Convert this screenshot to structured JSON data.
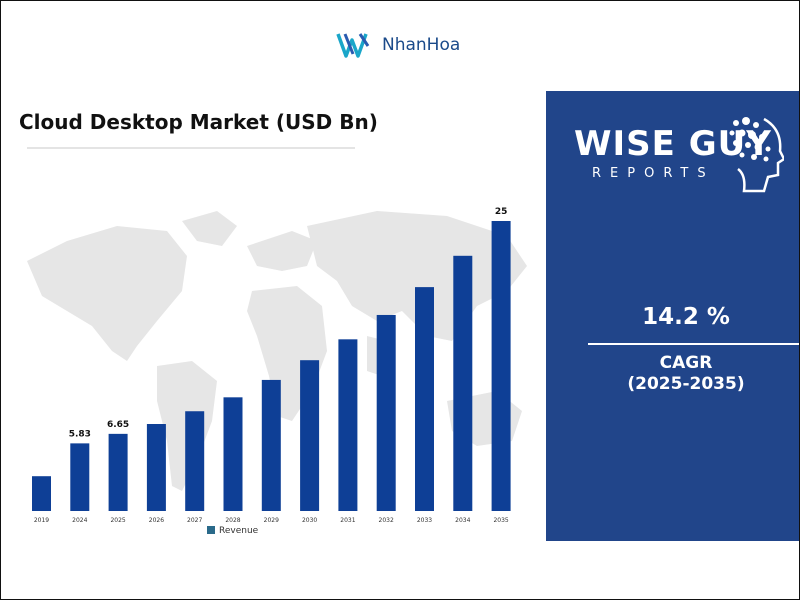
{
  "header": {
    "logo_text": "NhanHoa",
    "logo_icon": "nhanhoa-logo-icon"
  },
  "chart_data": {
    "type": "bar",
    "title": "Cloud Desktop Market (USD Bn)",
    "xlabel": "",
    "ylabel": "",
    "categories": [
      "2019",
      "2024",
      "2025",
      "2026",
      "2027",
      "2028",
      "2029",
      "2030",
      "2031",
      "2032",
      "2033",
      "2034",
      "2035"
    ],
    "series": [
      {
        "name": "Revenue",
        "values": [
          3.0,
          5.83,
          6.65,
          7.5,
          8.6,
          9.8,
          11.3,
          13.0,
          14.8,
          16.9,
          19.3,
          22.0,
          25
        ]
      }
    ],
    "data_labels": [
      "",
      "5.83",
      "6.65",
      "",
      "",
      "",
      "",
      "",
      "",
      "",
      "",
      "",
      "25"
    ],
    "ylim": [
      0,
      25
    ],
    "grid": false,
    "legend": "bottom",
    "bar_color": "#0e3f96",
    "background": "world-map"
  },
  "sidebar": {
    "brand_line1": "WISE GUY",
    "brand_line2": "REPORTS",
    "cagr_value": "14.2 %",
    "cagr_label": "CAGR",
    "cagr_period": "(2025-2035)",
    "background_color": "#21458a"
  }
}
